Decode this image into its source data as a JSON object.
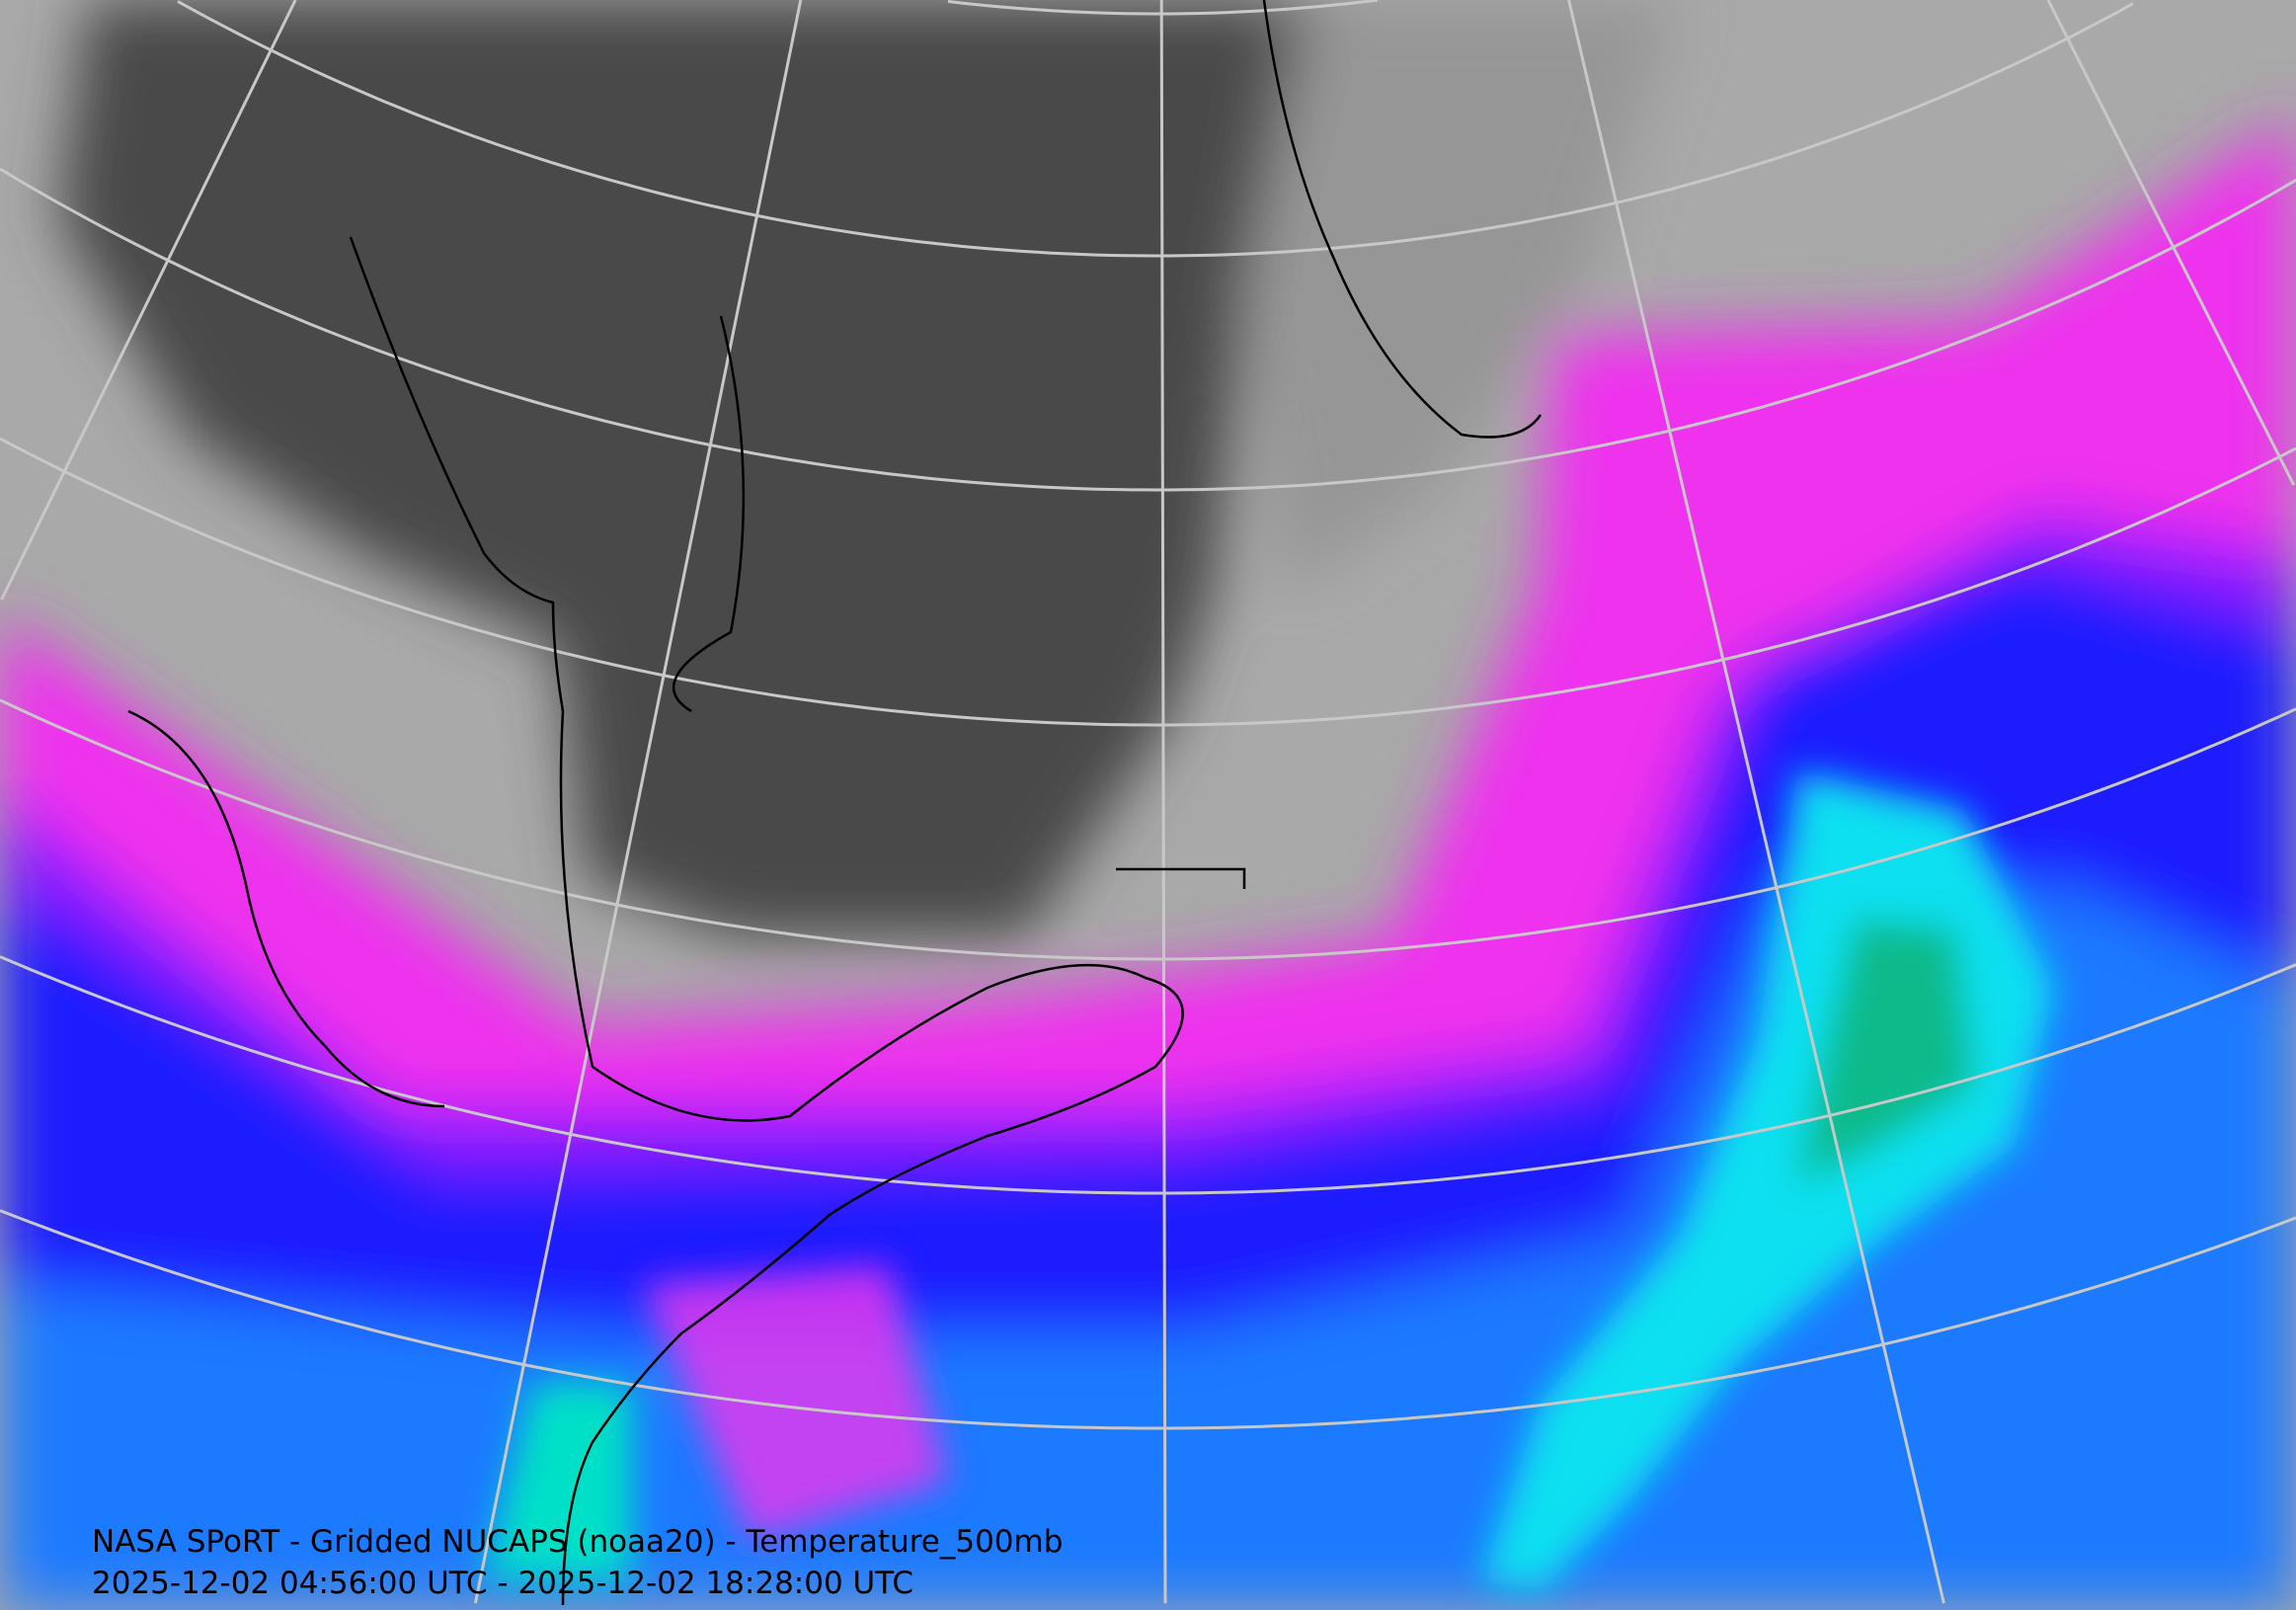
{
  "map": {
    "title": "NASA SPoRT - Gridded NUCAPS (noaa20) - Temperature_500mb",
    "time_range": "2025-12-02 04:56:00 UTC - 2025-12-02 18:28:00 UTC",
    "projection": "polar stereographic with lat/lon graticule",
    "colors": {
      "coldest": "#4a4a4a",
      "cold": "#a9a9a9",
      "mid": "#ff1aff",
      "warm": "#1a1aff",
      "warmer": "#1a8cff",
      "warmest": "#00e6e6",
      "streak": "#00a060",
      "graticule": "#c8c8c8",
      "coastline": "#000000"
    }
  }
}
